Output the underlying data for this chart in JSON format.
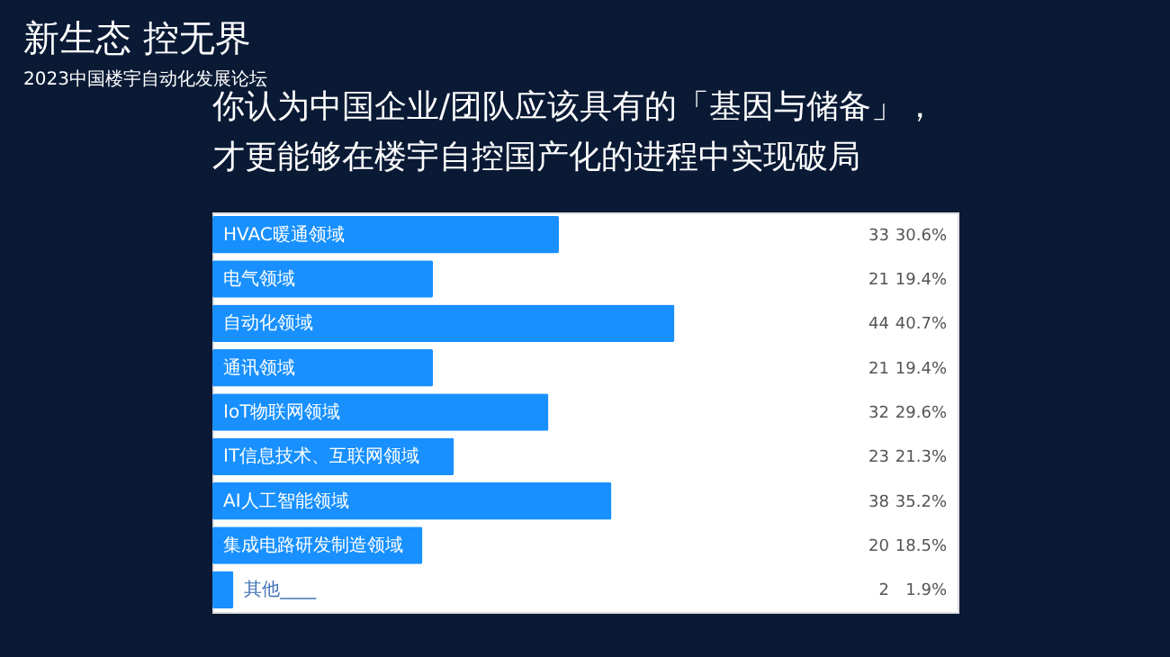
{
  "chart_data": {
    "type": "bar",
    "orientation": "horizontal",
    "title": "你认为中国企业/团队应该具有的「基因与储备」，才更能够在楼宇自控国产化的进程中实现破局",
    "annotations": [
      "新生态  控无界",
      "2023中国楼宇自动化发展论坛",
      "30.6%",
      "19.4%",
      "40.7%",
      "19.4%",
      "29.6%",
      "21.3%",
      "35.2%",
      "18.5%",
      "1.9%"
    ],
    "categories": [
      "HVAC暖通领域",
      "电气领域",
      "自动化领域",
      "通讯领域",
      "IoT物联网领域",
      "IT信息技术、互联网领域",
      "AI人工智能领域",
      "集成电路研发制造领域",
      "其他____"
    ],
    "values": [
      33,
      21,
      44,
      21,
      32,
      23,
      38,
      20,
      2
    ],
    "data_labels": true,
    "color": "#1890ff"
  }
}
